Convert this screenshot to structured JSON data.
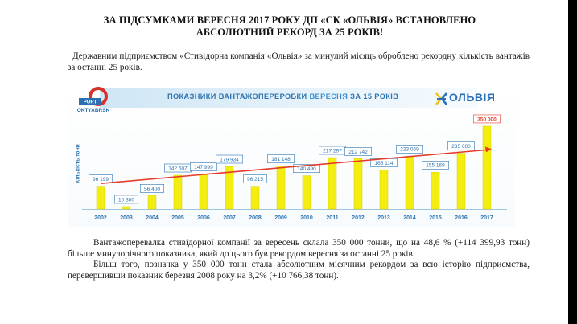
{
  "document": {
    "title_line1": "ЗА ПІДСУМКАМИ ВЕРЕСНЯ 2017 РОКУ ДП «СК «ОЛЬВІЯ» ВСТАНОВЛЕНО",
    "title_line2": "АБСОЛЮТНИЙ РЕКОРД ЗА 25 РОКІВ!",
    "paragraph1": "Державним підприємством «Стивідорна компанія «Ольвія» за минулий місяць оброблено рекордну кількість вантажів за останні 25 років.",
    "paragraph2": "Вантажоперевалка стивідорної компанії за вересень склала 350 000 тонни, що на 48,6 % (+114 399,93 тонн) більше минулорічного показника, який до цього був рекордом вересня за останні 25 років.",
    "paragraph3": "Більш того, позначка у 350 000 тонн стала абсолютним місячним рекордом за всю історію підприємства, перевершивши показник березня 2008 року на 3,2% (+10 766,38 тонн)."
  },
  "logos": {
    "port_top": "PORT",
    "port_bottom": "OKTYABRSK",
    "olviya": "ОЛЬВІЯ"
  },
  "banner": {
    "prefix": "ПОКАЗНИКИ ВАНТАЖОПЕРЕРОБКИ ",
    "highlight": "ВЕРЕСНЯ",
    "suffix": " ЗА 15 РОКІВ"
  },
  "colors": {
    "bar": "#f4ee10",
    "bar_record": "#f4ee10",
    "trend": "#e53a2a",
    "label_border": "#2c74b0",
    "label_text": "#2c74b0",
    "record_text": "#e53a2a",
    "axis_text": "#2c74b0"
  },
  "chart_data": {
    "type": "bar",
    "title": "ПОКАЗНИКИ ВАНТАЖОПЕРЕРОБКИ ВЕРЕСНЯ ЗА 15 РОКІВ",
    "ylabel": "Кількість тонн",
    "xlabel": "",
    "categories": [
      "2002",
      "2003",
      "2004",
      "2005",
      "2006",
      "2007",
      "2008",
      "2009",
      "2010",
      "2011",
      "2012",
      "2013",
      "2014",
      "2015",
      "2016",
      "2017"
    ],
    "values": [
      96199,
      10300,
      56400,
      142607,
      147999,
      179934,
      96215,
      181148,
      140490,
      217297,
      212742,
      165114,
      223059,
      155169,
      235600,
      350000
    ],
    "value_labels": [
      "96 199",
      "10 300",
      "56 400",
      "142 607",
      "147 999",
      "179 934",
      "96 215",
      "181 148",
      "140 490",
      "217 297",
      "212 742",
      "165 114",
      "223 059",
      "155 169",
      "235 600",
      "350 000"
    ],
    "trend_line": {
      "start": 108000,
      "end": 250000
    },
    "ylim": [
      0,
      360000
    ],
    "grid": false,
    "legend": "none"
  }
}
